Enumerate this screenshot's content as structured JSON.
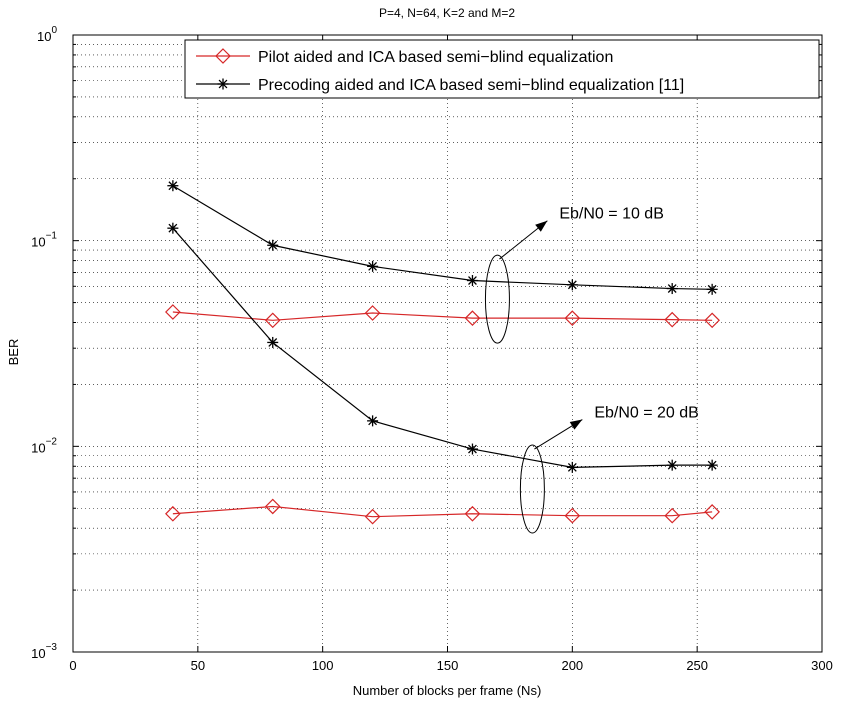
{
  "chart_data": {
    "type": "line",
    "title": "P=4, N=64, K=2 and M=2",
    "xlabel": "Number of blocks per frame (Ns)",
    "ylabel": "BER",
    "y_scale": "log",
    "xlim": [
      0,
      300
    ],
    "ylim": [
      0.001,
      1
    ],
    "grid": true,
    "legend_position": "top-right",
    "x_ticks": [
      "0",
      "50",
      "100",
      "150",
      "200",
      "250",
      "300"
    ],
    "y_ticks": [
      {
        "base": "10",
        "exp": "0"
      },
      {
        "base": "10",
        "exp": "−1"
      },
      {
        "base": "10",
        "exp": "−2"
      },
      {
        "base": "10",
        "exp": "−3"
      }
    ],
    "x": [
      40,
      80,
      120,
      160,
      200,
      240,
      256
    ],
    "series": [
      {
        "name": "Pilot aided and ICA based semi−blind equalization",
        "snr": "10 dB",
        "color": "#d62728",
        "marker": "diamond",
        "values": [
          0.045,
          0.041,
          0.0445,
          0.042,
          0.042,
          0.0413,
          0.041
        ],
        "in_legend": true
      },
      {
        "name": "Precoding aided and ICA based semi−blind equalization [11]",
        "snr": "10 dB",
        "color": "#000000",
        "marker": "star",
        "values": [
          0.185,
          0.095,
          0.075,
          0.064,
          0.061,
          0.0585,
          0.058
        ],
        "in_legend": true
      },
      {
        "name": "Pilot aided and ICA based semi−blind equalization",
        "snr": "20 dB",
        "color": "#d62728",
        "marker": "diamond",
        "values": [
          0.0047,
          0.0051,
          0.00455,
          0.0047,
          0.0046,
          0.0046,
          0.0048
        ],
        "in_legend": false
      },
      {
        "name": "Precoding aided and ICA based semi−blind equalization [11]",
        "snr": "20 dB",
        "color": "#000000",
        "marker": "star",
        "values": [
          0.115,
          0.032,
          0.0133,
          0.0097,
          0.0079,
          0.0081,
          0.0081
        ],
        "in_legend": false
      }
    ],
    "annotations": [
      {
        "text": "Eb/N0 = 10 dB",
        "ellipse_center": [
          170,
          0.052
        ],
        "arrow_to": [
          190,
          0.125
        ]
      },
      {
        "text": "Eb/N0 = 20 dB",
        "ellipse_center": [
          184,
          0.0062
        ],
        "arrow_to": [
          204,
          0.0135
        ]
      }
    ]
  }
}
